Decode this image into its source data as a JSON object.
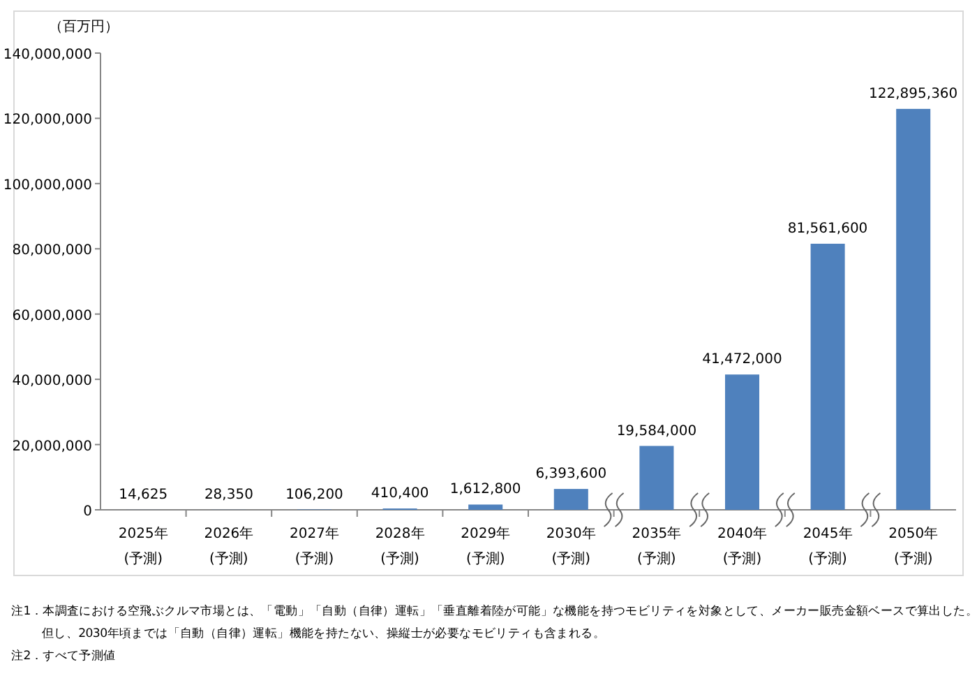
{
  "chart_data": {
    "type": "bar",
    "ylabel": "（百万円）",
    "categories": [
      "2025年\n(予測)",
      "2026年\n(予測)",
      "2027年\n(予測)",
      "2028年\n(予測)",
      "2029年\n(予測)",
      "2030年\n(予測)",
      "2035年\n(予測)",
      "2040年\n(予測)",
      "2045年\n(予測)",
      "2050年\n(予測)"
    ],
    "values": [
      14625,
      28350,
      106200,
      410400,
      1612800,
      6393600,
      19584000,
      41472000,
      81561600,
      122895360
    ],
    "color": "#4f81bd",
    "value_labels": [
      "14,625",
      "28,350",
      "106,200",
      "410,400",
      "1,612,800",
      "6,393,600",
      "19,584,000",
      "41,472,000",
      "81,561,600",
      "122,895,360"
    ],
    "ylim": [
      0,
      140000000
    ],
    "yticks": [
      {
        "value": 0,
        "label": "0"
      },
      {
        "value": 20000000,
        "label": "20,000,000"
      },
      {
        "value": 40000000,
        "label": "40,000,000"
      },
      {
        "value": 60000000,
        "label": "60,000,000"
      },
      {
        "value": 80000000,
        "label": "80,000,000"
      },
      {
        "value": 100000000,
        "label": "100,000,000"
      },
      {
        "value": 120000000,
        "label": "120,000,000"
      },
      {
        "value": 140000000,
        "label": "140,000,000"
      }
    ],
    "grid": false,
    "annotations": [
      "注1．本調査における空飛ぶクルマ市場とは、「電動」「自動（自律）運転」「垂直離着陸が可能」な機能を持つモビリティを対象として、メーカー販売金額ベースで算出した。",
      "但し、2030年頃までは「自動（自律）運転」機能を持たない、操縦士が必要なモビリティも含まれる。",
      "注2．すべて予測値"
    ]
  }
}
